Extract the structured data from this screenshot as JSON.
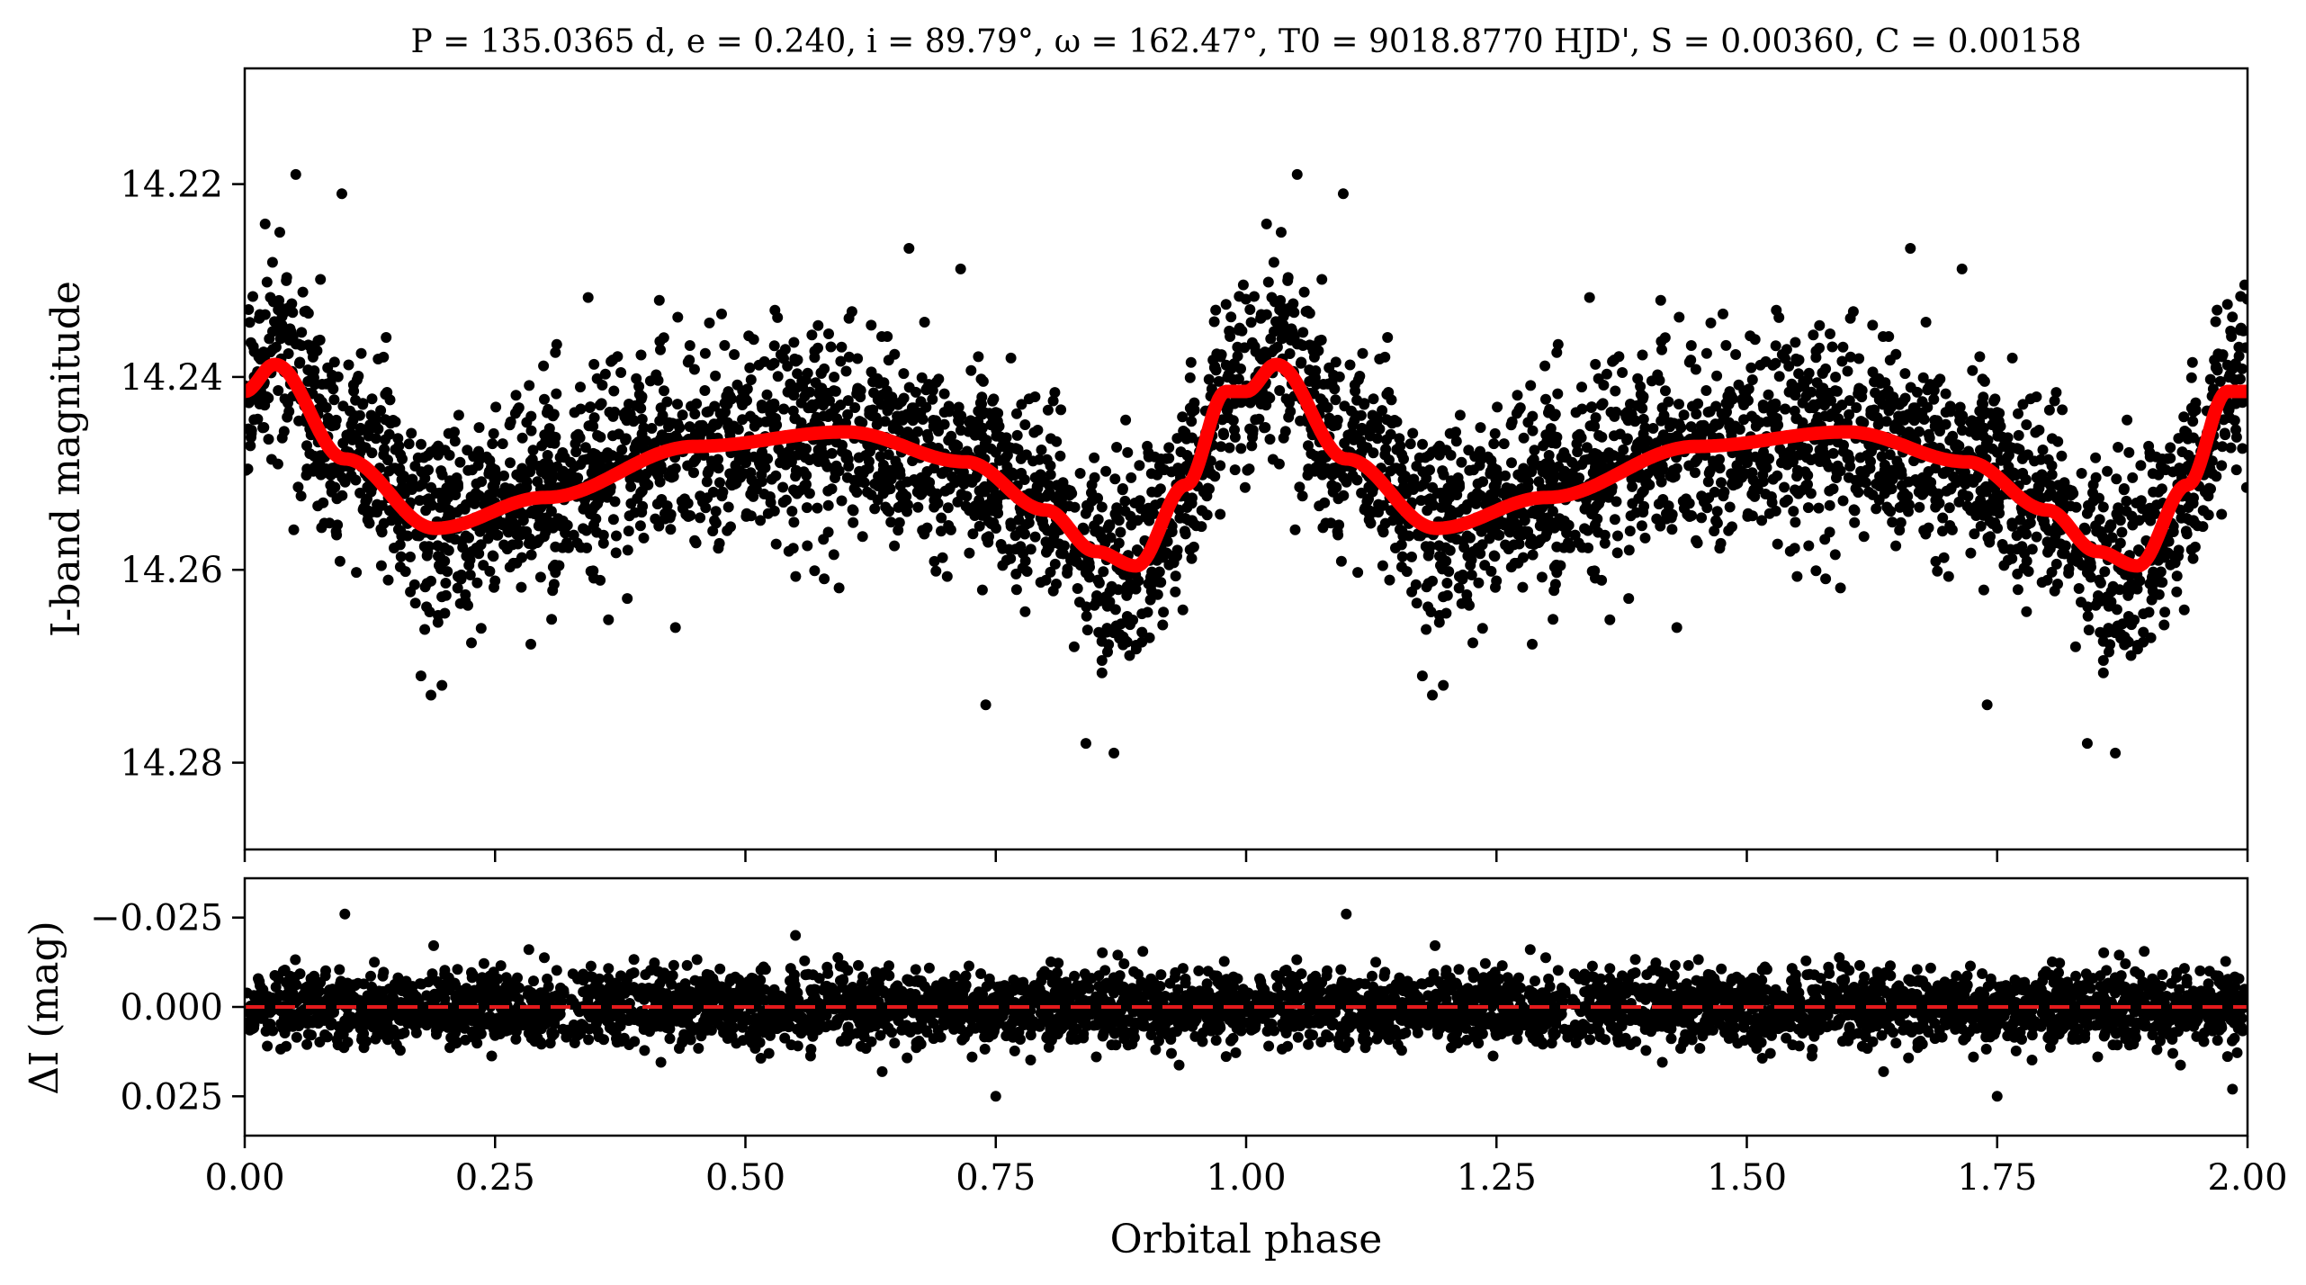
{
  "chart_data": [
    {
      "type": "scatter",
      "panel": "light curve",
      "title": "P = 135.0365 d, e = 0.240, i = 89.79°, ω = 162.47°, T0 = 9018.8770 HJD', S = 0.00360, C = 0.00158",
      "xlabel": "",
      "ylabel": "I-band magnitude",
      "xlim": [
        0.0,
        2.0
      ],
      "ylim": [
        14.289,
        14.208
      ],
      "y_inverted": true,
      "yticks": [
        "14.22",
        "14.24",
        "14.26",
        "14.28"
      ],
      "xticks_labeled": false,
      "grid": false,
      "colors": {
        "points": "#000000",
        "model": "#ff0000"
      },
      "series": [
        {
          "kind": "points",
          "description_of_values": "observed I-band magnitudes phase-folded over two orbital cycles",
          "phase_knots": [
            0.0,
            0.03,
            0.1,
            0.19,
            0.3,
            0.45,
            0.6,
            0.72,
            0.8,
            0.85,
            0.89,
            0.94,
            0.98,
            1.0
          ],
          "mean_magnitude_knots": [
            14.241,
            14.237,
            14.247,
            14.256,
            14.252,
            14.247,
            14.246,
            14.249,
            14.253,
            14.258,
            14.261,
            14.252,
            14.242,
            14.241
          ],
          "scatter_sigma": 0.005,
          "points_per_cycle": 2200,
          "notable_points": [
            {
              "x": 0.051,
              "y": 14.219
            },
            {
              "x": 0.097,
              "y": 14.221
            },
            {
              "x": 0.035,
              "y": 14.225
            },
            {
              "x": 0.84,
              "y": 14.278
            },
            {
              "x": 0.868,
              "y": 14.279
            },
            {
              "x": 0.74,
              "y": 14.274
            },
            {
              "x": 0.176,
              "y": 14.271
            },
            {
              "x": 0.186,
              "y": 14.273
            }
          ]
        },
        {
          "kind": "model",
          "phase": [
            0.0,
            0.03,
            0.1,
            0.19,
            0.3,
            0.45,
            0.6,
            0.72,
            0.8,
            0.85,
            0.89,
            0.94,
            0.98,
            1.0
          ],
          "magnitude": [
            14.2415,
            14.2387,
            14.2485,
            14.2557,
            14.2525,
            14.2472,
            14.2457,
            14.2488,
            14.2538,
            14.2581,
            14.2596,
            14.2512,
            14.2415,
            14.2415
          ]
        }
      ]
    },
    {
      "type": "scatter",
      "panel": "residuals",
      "xlabel": "Orbital phase",
      "ylabel": "ΔI (mag)",
      "xlim": [
        0.0,
        2.0
      ],
      "ylim": [
        0.036,
        -0.036
      ],
      "y_inverted": true,
      "xticks": [
        "0.00",
        "0.25",
        "0.50",
        "0.75",
        "1.00",
        "1.25",
        "1.50",
        "1.75",
        "2.00"
      ],
      "yticks": [
        "−0.025",
        "0.000",
        "0.025"
      ],
      "grid": false,
      "reference_line": {
        "y": 0.0,
        "style": "dashed",
        "color": "#e41a1c"
      },
      "residual_sigma": 0.005,
      "notable_points": [
        {
          "x": 0.1,
          "y": -0.026
        },
        {
          "x": 0.75,
          "y": 0.025
        },
        {
          "x": 0.55,
          "y": -0.02
        },
        {
          "x": 1.1,
          "y": -0.026
        },
        {
          "x": 1.75,
          "y": 0.025
        },
        {
          "x": 1.985,
          "y": 0.023
        }
      ]
    }
  ]
}
